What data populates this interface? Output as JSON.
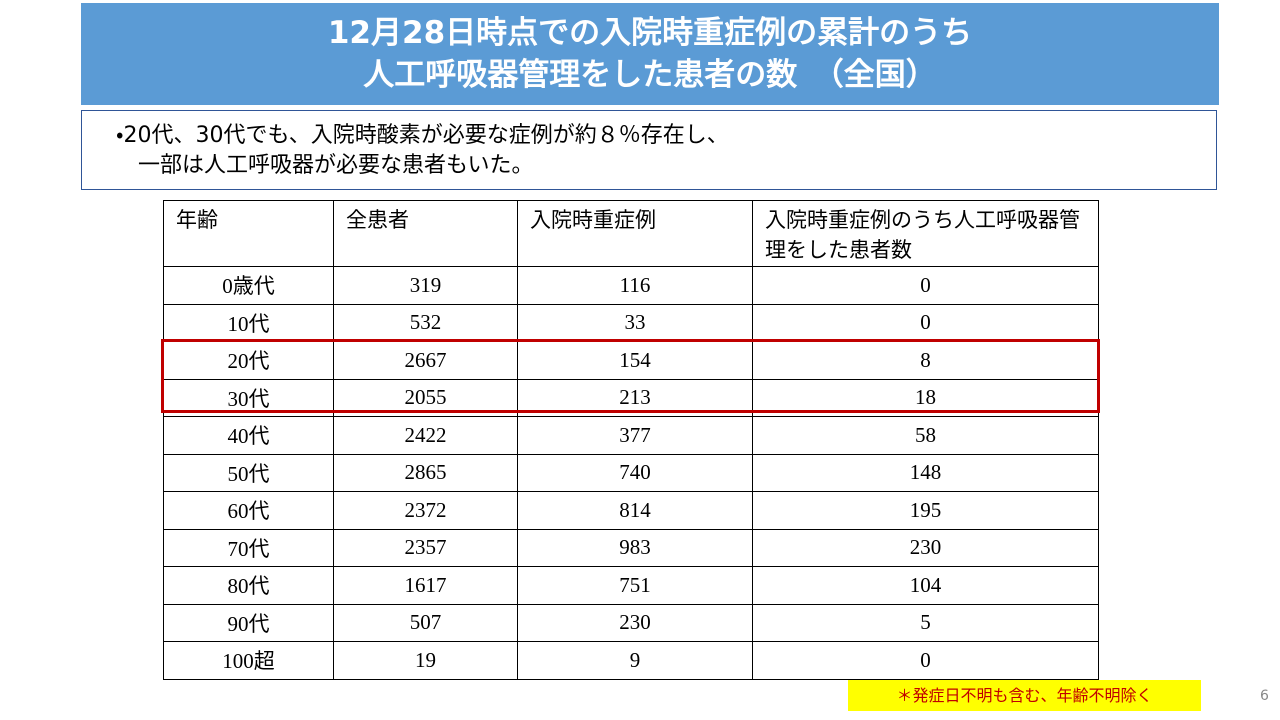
{
  "header": {
    "title": [
      "12月28日時点での入院時重症例の累計のうち",
      "人工呼吸器管理をした患者の数　（全国）"
    ]
  },
  "bullet": [
    "・20代、30代でも、入院時酸素が必要な症例が約８％存在し、",
    "一部は人工呼吸器が必要な患者もいた。"
  ],
  "table": {
    "headers": [
      "年齢",
      "全患者",
      "入院時重症例",
      "入院時重症例のうち人工呼吸器管理をした患者数"
    ],
    "rows": [
      [
        "0歳代",
        319,
        116,
        0
      ],
      [
        "10代",
        532,
        33,
        0
      ],
      [
        "20代",
        2667,
        154,
        8
      ],
      [
        "30代",
        2055,
        213,
        18
      ],
      [
        "40代",
        2422,
        377,
        58
      ],
      [
        "50代",
        2865,
        740,
        148
      ],
      [
        "60代",
        2372,
        814,
        195
      ],
      [
        "70代",
        2357,
        983,
        230
      ],
      [
        "80代",
        1617,
        751,
        104
      ],
      [
        "90代",
        507,
        230,
        5
      ],
      [
        "100超",
        19,
        9,
        0
      ]
    ]
  },
  "note": "＊発症日不明も含む、年齢不明除く",
  "page_number": 6
}
